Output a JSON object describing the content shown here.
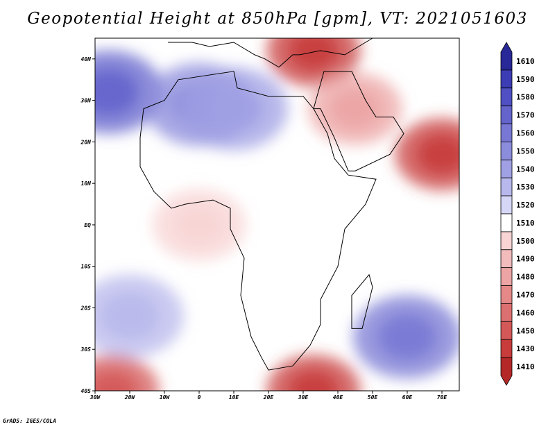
{
  "title": "Geopotential Height at 850hPa [gpm], VT: 2021051603",
  "credit": "GrADS: IGES/COLA",
  "map": {
    "projection": "latlon",
    "extent": {
      "lon_min": -30,
      "lon_max": 75,
      "lat_min": -40,
      "lat_max": 45
    },
    "lon_ticks": [
      {
        "value": -30,
        "label": "30W"
      },
      {
        "value": -20,
        "label": "20W"
      },
      {
        "value": -10,
        "label": "10W"
      },
      {
        "value": 0,
        "label": "0"
      },
      {
        "value": 10,
        "label": "10E"
      },
      {
        "value": 20,
        "label": "20E"
      },
      {
        "value": 30,
        "label": "30E"
      },
      {
        "value": 40,
        "label": "40E"
      },
      {
        "value": 50,
        "label": "50E"
      },
      {
        "value": 60,
        "label": "60E"
      },
      {
        "value": 70,
        "label": "70E"
      }
    ],
    "lat_ticks": [
      {
        "value": 40,
        "label": "40N"
      },
      {
        "value": 30,
        "label": "30N"
      },
      {
        "value": 20,
        "label": "20N"
      },
      {
        "value": 10,
        "label": "10N"
      },
      {
        "value": 0,
        "label": "EQ"
      },
      {
        "value": -10,
        "label": "10S"
      },
      {
        "value": -20,
        "label": "20S"
      },
      {
        "value": -30,
        "label": "30S"
      },
      {
        "value": -40,
        "label": "40S"
      }
    ],
    "field_features": [
      {
        "type": "high",
        "lon": -26,
        "lat": 32,
        "value": 1565
      },
      {
        "type": "high",
        "lon": 0,
        "lat": 29,
        "value": 1545
      },
      {
        "type": "high",
        "lon": 10,
        "lat": 28,
        "value": 1540
      },
      {
        "type": "high",
        "lon": 60,
        "lat": -27,
        "value": 1560
      },
      {
        "type": "high",
        "lon": -20,
        "lat": -22,
        "value": 1525
      },
      {
        "type": "low",
        "lon": 70,
        "lat": 17,
        "value": 1420
      },
      {
        "type": "low",
        "lon": 33,
        "lat": 42,
        "value": 1420
      },
      {
        "type": "low",
        "lon": 33,
        "lat": -40,
        "value": 1430
      },
      {
        "type": "low",
        "lon": -25,
        "lat": -40,
        "value": 1440
      },
      {
        "type": "low",
        "lon": 45,
        "lat": 28,
        "value": 1480
      },
      {
        "type": "low",
        "lon": 0,
        "lat": 0,
        "value": 1500
      }
    ]
  },
  "colorbar": {
    "levels": [
      {
        "label": "1610",
        "color": "#282898"
      },
      {
        "label": "1590",
        "color": "#3c3cb4"
      },
      {
        "label": "1580",
        "color": "#5050c4"
      },
      {
        "label": "1570",
        "color": "#6464cc"
      },
      {
        "label": "1560",
        "color": "#7878d4"
      },
      {
        "label": "1550",
        "color": "#8c8cdc"
      },
      {
        "label": "1540",
        "color": "#a0a0e4"
      },
      {
        "label": "1530",
        "color": "#b8b8ec"
      },
      {
        "label": "1520",
        "color": "#d6d6f6"
      },
      {
        "label": "1510",
        "color": "#ffffff"
      },
      {
        "label": "1500",
        "color": "#f8d4d4"
      },
      {
        "label": "1490",
        "color": "#f2bcbc"
      },
      {
        "label": "1480",
        "color": "#eca4a4"
      },
      {
        "label": "1470",
        "color": "#e48888"
      },
      {
        "label": "1460",
        "color": "#dc7070"
      },
      {
        "label": "1450",
        "color": "#d45858"
      },
      {
        "label": "1430",
        "color": "#c83c3c"
      },
      {
        "label": "1410",
        "color": "#b42828"
      }
    ]
  }
}
